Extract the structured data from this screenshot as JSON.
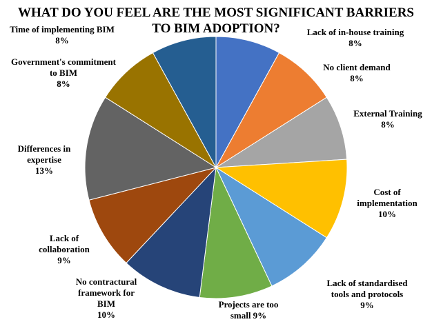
{
  "chart_data": {
    "type": "pie",
    "title_lines": [
      "WHAT  DO YOU FEEL ARE THE MOST SIGNIFICANT BARRIERS",
      "TO BIM ADOPTION?"
    ],
    "slices": [
      {
        "name": "Lack of in-house training",
        "value": 8,
        "value_label": "8%",
        "color": "#4472C4",
        "label_lines": [
          "Lack of in-house training",
          "8%"
        ]
      },
      {
        "name": "No client demand",
        "value": 8,
        "value_label": "8%",
        "color": "#ED7D31",
        "label_lines": [
          "No client demand",
          "8%"
        ]
      },
      {
        "name": "External Training",
        "value": 8,
        "value_label": "8%",
        "color": "#A5A5A5",
        "label_lines": [
          "External Training",
          "8%"
        ]
      },
      {
        "name": "Cost of implementation",
        "value": 10,
        "value_label": "10%",
        "color": "#FFC000",
        "label_lines": [
          "Cost of",
          "implementation",
          "10%"
        ]
      },
      {
        "name": "Lack of standardised tools and protocols",
        "value": 9,
        "value_label": "9%",
        "color": "#5B9BD5",
        "label_lines": [
          "Lack of standardised",
          "tools and protocols",
          "9%"
        ]
      },
      {
        "name": "Projects are too small",
        "value": 9,
        "value_label": "9%",
        "color": "#70AD47",
        "label_lines": [
          "Projects are too",
          "small 9%"
        ]
      },
      {
        "name": "No contractural framework for BIM",
        "value": 10,
        "value_label": "10%",
        "color": "#264478",
        "label_lines": [
          "No contractural",
          "framework for",
          "BIM",
          "10%"
        ]
      },
      {
        "name": "Lack of collaboration",
        "value": 9,
        "value_label": "9%",
        "color": "#9E480E",
        "label_lines": [
          "Lack of",
          "collaboration",
          "9%"
        ]
      },
      {
        "name": "Differences in expertise",
        "value": 13,
        "value_label": "13%",
        "color": "#636363",
        "label_lines": [
          "Differences in",
          "expertise",
          "13%"
        ]
      },
      {
        "name": "Government's commitment to BIM",
        "value": 8,
        "value_label": "8%",
        "color": "#997300",
        "label_lines": [
          "Government's commitment",
          "to BIM",
          "8%"
        ]
      },
      {
        "name": "Time of implementing BIM",
        "value": 8,
        "value_label": "8%",
        "color": "#255E91",
        "label_lines": [
          "Time of implementing BIM",
          "8%"
        ]
      }
    ]
  }
}
